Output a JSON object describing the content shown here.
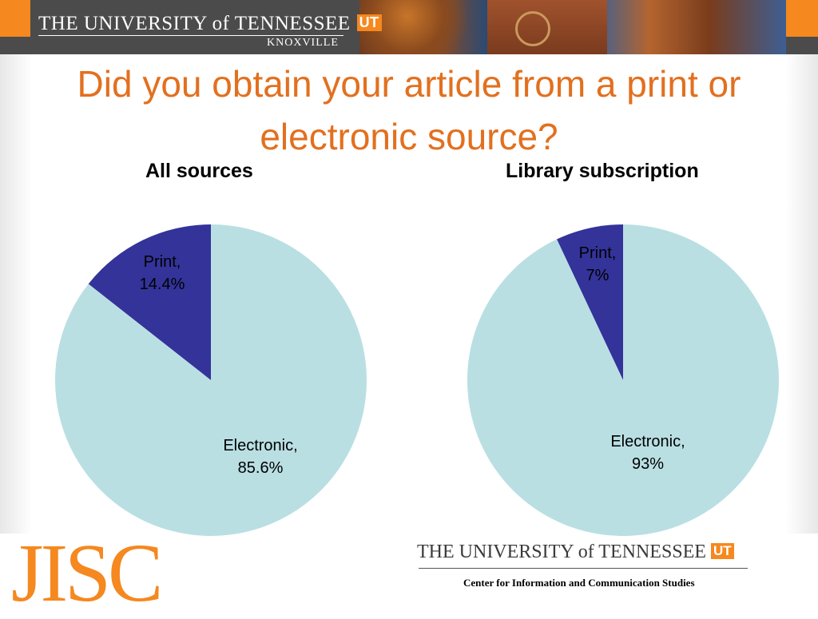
{
  "header": {
    "university_wordmark": "THE UNIVERSITY of TENNESSEE",
    "ut_logo": "UT",
    "campus": "KNOXVILLE"
  },
  "slide": {
    "title": "Did you obtain your article from a print or electronic source?"
  },
  "colors": {
    "title": "#e2701f",
    "print": "#33339a",
    "electronic": "#b9dfe3",
    "accent_orange": "#f5881f"
  },
  "chart_data": [
    {
      "type": "pie",
      "title": "All sources",
      "slices": [
        {
          "label": "Print",
          "value": 14.4,
          "value_label": "14.4%"
        },
        {
          "label": "Electronic",
          "value": 85.6,
          "value_label": "85.6%"
        }
      ]
    },
    {
      "type": "pie",
      "title": "Library subscription",
      "slices": [
        {
          "label": "Print",
          "value": 7,
          "value_label": "7%"
        },
        {
          "label": "Electronic",
          "value": 93,
          "value_label": "93%"
        }
      ]
    }
  ],
  "footer": {
    "jisc_logo": "JISC",
    "university_wordmark": "THE UNIVERSITY of TENNESSEE",
    "ut_logo": "UT",
    "center_name": "Center for Information and Communication Studies"
  }
}
